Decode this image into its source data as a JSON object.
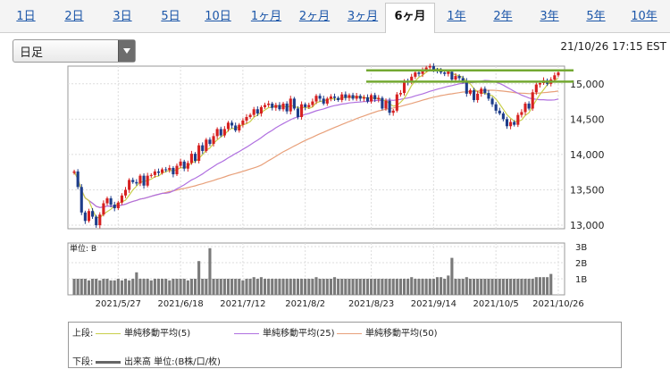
{
  "tabs": [
    {
      "label": "1日",
      "active": false
    },
    {
      "label": "2日",
      "active": false
    },
    {
      "label": "3日",
      "active": false
    },
    {
      "label": "5日",
      "active": false
    },
    {
      "label": "10日",
      "active": false
    },
    {
      "label": "1ヶ月",
      "active": false
    },
    {
      "label": "2ヶ月",
      "active": false
    },
    {
      "label": "3ヶ月",
      "active": false
    },
    {
      "label": "6ヶ月",
      "active": true
    },
    {
      "label": "1年",
      "active": false
    },
    {
      "label": "2年",
      "active": false
    },
    {
      "label": "3年",
      "active": false
    },
    {
      "label": "5年",
      "active": false
    },
    {
      "label": "10年",
      "active": false
    }
  ],
  "period_select": {
    "value": "日足"
  },
  "timestamp": "21/10/26 17:15 EST",
  "legend": {
    "upper_label": "上段:",
    "lower_label": "下段:",
    "ma5": "単純移動平均(5)",
    "ma25": "単純移動平均(25)",
    "ma50": "単純移動平均(50)",
    "volume": "出来高 単位:(B株/口/枚)"
  },
  "colors": {
    "up": "#d62020",
    "down": "#1d3d8a",
    "ma5": "#c9cf4a",
    "ma25": "#b070e0",
    "ma50": "#e8a07a",
    "volume": "#7a7a7a",
    "line": "#73a832"
  },
  "chart_data": {
    "type": "candlestick",
    "x_ticks": [
      "2021/5/27",
      "2021/6/18",
      "2021/7/12",
      "2021/8/2",
      "2021/8/23",
      "2021/9/14",
      "2021/10/5",
      "2021/10/26"
    ],
    "price_axis": {
      "ticks": [
        13000,
        13500,
        14000,
        14500,
        15000
      ],
      "min": 12950,
      "max": 15250
    },
    "volume_axis": {
      "ticks": [
        "1B",
        "2B",
        "3B"
      ],
      "label": "単位: B",
      "max": 3
    },
    "horizontal_lines": [
      15190,
      15030
    ],
    "series": [
      {
        "name": "Price (close)",
        "values": [
          13760,
          13540,
          13180,
          13060,
          13200,
          13120,
          13000,
          13150,
          13310,
          13380,
          13290,
          13240,
          13320,
          13420,
          13500,
          13640,
          13610,
          13590,
          13700,
          13560,
          13700,
          13710,
          13760,
          13740,
          13790,
          13780,
          13810,
          13720,
          13840,
          13900,
          13800,
          13880,
          14010,
          13910,
          14130,
          14050,
          14210,
          14150,
          14260,
          14360,
          14270,
          14360,
          14450,
          14410,
          14340,
          14420,
          14480,
          14530,
          14560,
          14640,
          14580,
          14670,
          14700,
          14720,
          14660,
          14700,
          14640,
          14720,
          14610,
          14790,
          14650,
          14530,
          14710,
          14670,
          14700,
          14750,
          14830,
          14790,
          14720,
          14790,
          14820,
          14800,
          14770,
          14850,
          14800,
          14840,
          14790,
          14830,
          14790,
          14810,
          14750,
          14840,
          14780,
          14800,
          14650,
          14760,
          14590,
          14620,
          14850,
          14870,
          15040,
          15020,
          15100,
          15160,
          15140,
          15190,
          15230,
          15250,
          15200,
          15190,
          15160,
          15140,
          15170,
          15060,
          15110,
          15080,
          15040,
          14860,
          14910,
          14770,
          14860,
          14930,
          14870,
          14790,
          14710,
          14620,
          14580,
          14500,
          14400,
          14460,
          14420,
          14560,
          14600,
          14720,
          14650,
          14880,
          14990,
          15010,
          15050,
          15000,
          15060,
          15120,
          15160
        ]
      },
      {
        "name": "Volume",
        "values": [
          1.0,
          1.0,
          1.0,
          1.0,
          0.9,
          1.0,
          1.0,
          0.9,
          1.0,
          1.0,
          0.9,
          0.9,
          1.0,
          0.9,
          1.0,
          0.9,
          1.0,
          1.4,
          1.0,
          1.0,
          1.0,
          0.9,
          1.0,
          1.0,
          1.0,
          1.0,
          0.9,
          1.0,
          1.0,
          1.0,
          1.0,
          0.9,
          1.0,
          1.0,
          2.1,
          1.0,
          1.0,
          2.9,
          1.0,
          1.0,
          1.0,
          1.0,
          1.0,
          1.0,
          1.0,
          1.0,
          0.9,
          1.0,
          1.0,
          1.1,
          1.0,
          1.1,
          1.0,
          1.0,
          1.0,
          1.0,
          1.0,
          1.0,
          1.0,
          1.0,
          1.0,
          1.0,
          1.0,
          1.0,
          1.0,
          1.0,
          1.1,
          1.0,
          1.0,
          1.0,
          1.0,
          1.1,
          1.0,
          1.0,
          1.0,
          1.0,
          1.0,
          1.0,
          1.0,
          1.0,
          1.0,
          1.0,
          1.0,
          1.0,
          1.0,
          1.0,
          1.0,
          1.0,
          1.0,
          1.0,
          1.0,
          1.0,
          1.1,
          1.0,
          1.0,
          1.0,
          1.0,
          1.0,
          1.0,
          1.1,
          1.1,
          1.0,
          1.2,
          2.3,
          1.0,
          1.0,
          1.0,
          1.1,
          1.0,
          1.0,
          1.0,
          1.0,
          1.0,
          1.0,
          1.0,
          1.0,
          1.0,
          1.0,
          1.0,
          1.0,
          1.0,
          1.0,
          1.0,
          1.0,
          1.0,
          1.0,
          1.1,
          1.1,
          1.1,
          1.1,
          1.3
        ]
      }
    ]
  }
}
